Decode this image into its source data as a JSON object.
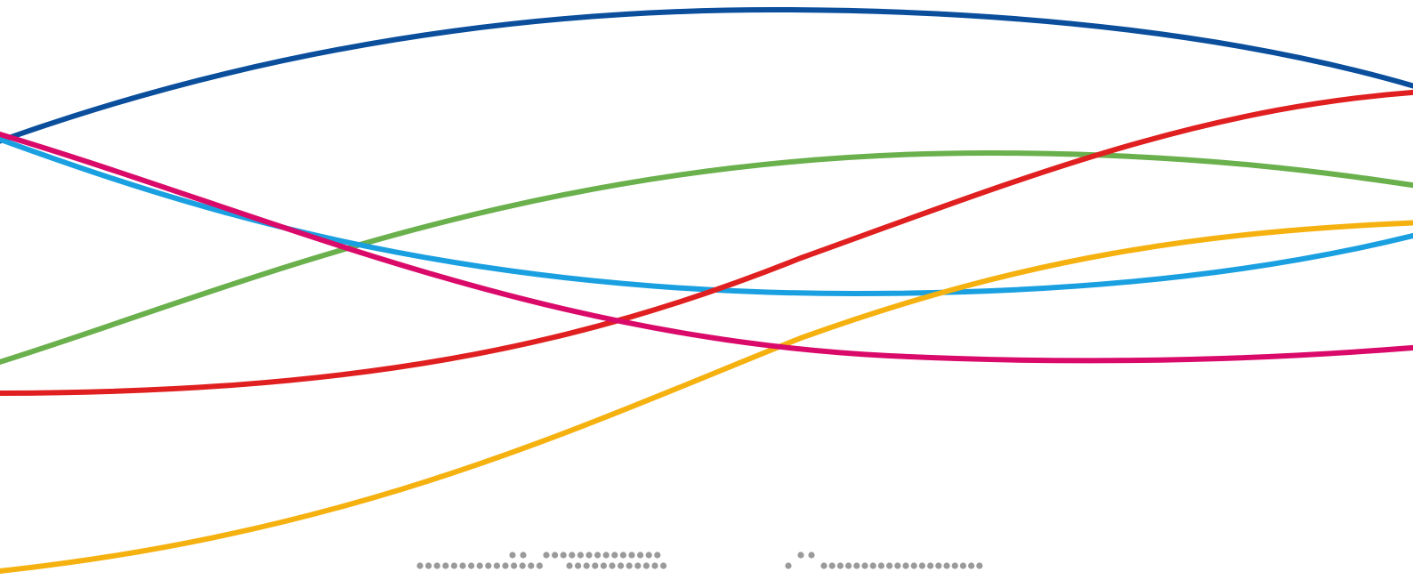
{
  "graphic": {
    "background": "#ffffff",
    "ribbons": [
      {
        "name": "dark-blue-ribbon",
        "color": "#0b4f9c"
      },
      {
        "name": "green-ribbon",
        "color": "#6ab04c"
      },
      {
        "name": "light-blue-ribbon",
        "color": "#1aa0e0"
      },
      {
        "name": "red-ribbon",
        "color": "#e02020"
      },
      {
        "name": "yellow-ribbon",
        "color": "#f5b10f"
      },
      {
        "name": "magenta-ribbon",
        "color": "#da0a6a"
      }
    ],
    "dot_text_color": "#9a9a9a"
  }
}
